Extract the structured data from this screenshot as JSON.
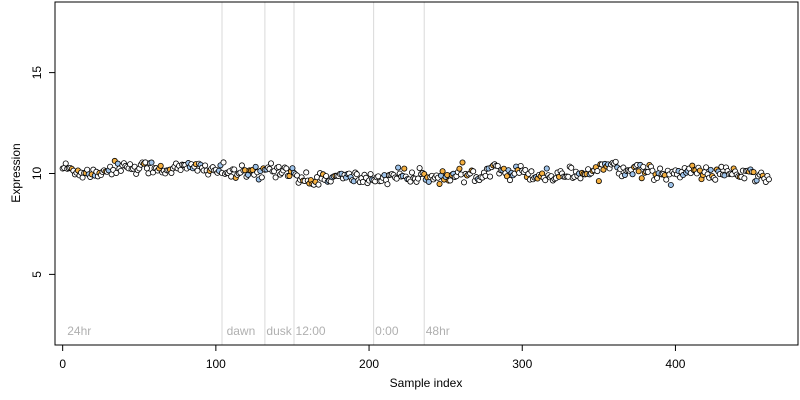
{
  "chart_data": {
    "type": "scatter",
    "title": "",
    "xlabel": "Sample index",
    "ylabel": "Expression",
    "xlim": [
      -5,
      480
    ],
    "ylim": [
      1.5,
      18.5
    ],
    "xticks": [
      0,
      100,
      200,
      300,
      400
    ],
    "yticks": [
      5,
      10,
      15
    ],
    "grid": false,
    "legend": "none",
    "colors": {
      "point_outline": "#000000",
      "fill_neutral": "#ffffff",
      "fill_high": "#f5b041",
      "fill_low": "#9ec3ea",
      "vline": "#d9d9d9",
      "annotation": "#b0b0b0"
    },
    "vlines": [
      104,
      132,
      151,
      203,
      236
    ],
    "annotations": [
      {
        "x": 3,
        "y": 2.0,
        "label": "24hr"
      },
      {
        "x": 107,
        "y": 2.0,
        "label": "dawn"
      },
      {
        "x": 133,
        "y": 2.0,
        "label": "dusk"
      },
      {
        "x": 152,
        "y": 2.0,
        "label": "12:00"
      },
      {
        "x": 204,
        "y": 2.0,
        "label": "0:00"
      },
      {
        "x": 237,
        "y": 2.0,
        "label": "48hr"
      }
    ],
    "series": [
      {
        "x": [
          0,
          10,
          20,
          30,
          40,
          50,
          60,
          70,
          80,
          90,
          100,
          110,
          120,
          130,
          135,
          140,
          145,
          150,
          155,
          160,
          170,
          180,
          190,
          200,
          210,
          220,
          230,
          240,
          250,
          260,
          270,
          280,
          285,
          290,
          300,
          310,
          320,
          330,
          340,
          350,
          355,
          360,
          365,
          370,
          380,
          390,
          400,
          410,
          420,
          430,
          440,
          450,
          460
        ],
        "y": [
          10.3,
          10.1,
          10.0,
          10.2,
          10.4,
          10.3,
          10.3,
          10.2,
          10.3,
          10.3,
          10.2,
          10.0,
          10.0,
          10.0,
          10.3,
          10.2,
          10.2,
          10.1,
          9.7,
          9.6,
          9.8,
          9.8,
          9.8,
          9.7,
          9.8,
          10.0,
          9.7,
          9.9,
          9.8,
          9.9,
          9.9,
          10.3,
          10.4,
          10.0,
          10.1,
          9.9,
          9.9,
          10.0,
          10.0,
          10.2,
          10.4,
          10.5,
          10.2,
          10.3,
          10.1,
          10.0,
          10.0,
          10.1,
          10.0,
          10.0,
          10.0,
          9.9,
          9.8
        ],
        "noise": 0.17,
        "count": 462
      }
    ]
  }
}
